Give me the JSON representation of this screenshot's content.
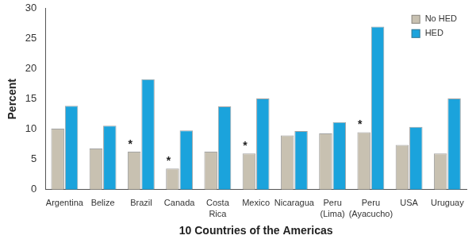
{
  "chart_data": {
    "type": "bar",
    "x_label": "10 Countries of the Americas",
    "y_label": "Percent",
    "categories": [
      "Argentina",
      "Belize",
      "Brazil",
      "Canada",
      "Costa\nRica",
      "Mexico",
      "Nicaragua",
      "Peru\n(Lima)",
      "Peru\n(Ayacucho)",
      "USA",
      "Uruguay"
    ],
    "series": [
      {
        "name": "No HED",
        "color": "#c8c1b1",
        "values": [
          10.1,
          6.8,
          6.3,
          3.5,
          6.3,
          6.0,
          9.0,
          9.3,
          9.5,
          7.4,
          6.0
        ]
      },
      {
        "name": "HED",
        "color": "#1ba3dc",
        "values": [
          13.9,
          10.6,
          18.3,
          9.8,
          13.8,
          15.1,
          9.7,
          11.2,
          27.0,
          10.4,
          15.1
        ]
      }
    ],
    "ylim": [
      0,
      30
    ],
    "yticks": [
      0,
      5,
      10,
      15,
      20,
      25,
      30
    ],
    "grid": false,
    "legend": "top-right",
    "annotations": [
      {
        "text": "*",
        "category": "Brazil",
        "series": "No HED"
      },
      {
        "text": "*",
        "category": "Canada",
        "series": "No HED"
      },
      {
        "text": "*",
        "category": "Mexico",
        "series": "No HED"
      },
      {
        "text": "*",
        "category": "Peru\n(Ayacucho)",
        "series": "No HED"
      }
    ]
  }
}
